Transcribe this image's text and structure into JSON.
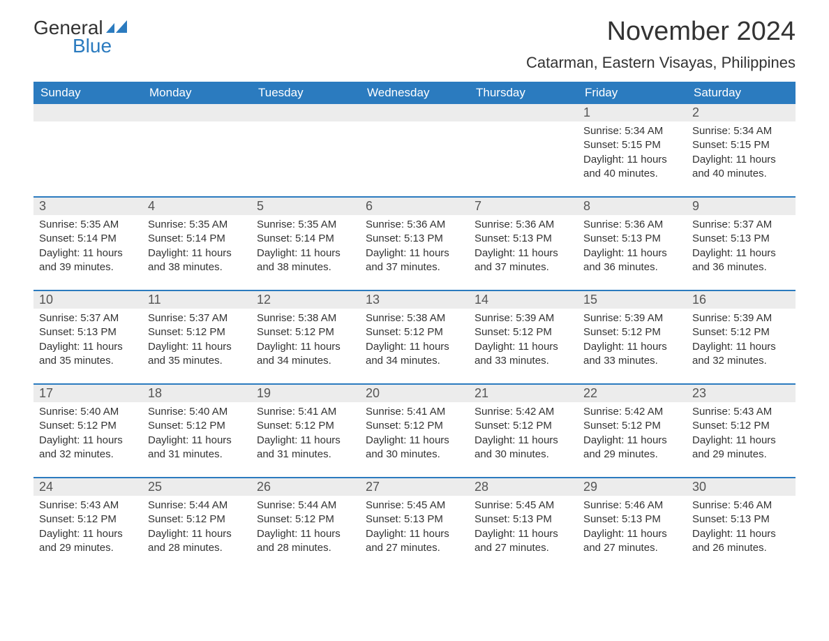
{
  "logo": {
    "text1": "General",
    "text2": "Blue",
    "icon_color": "#2b7bbf"
  },
  "title": "November 2024",
  "location": "Catarman, Eastern Visayas, Philippines",
  "weekday_header_bg": "#2b7bbf",
  "weekday_header_fg": "#ffffff",
  "daynum_bg": "#ececec",
  "accent_color": "#2b7bbf",
  "text_color": "#333333",
  "weekdays": [
    "Sunday",
    "Monday",
    "Tuesday",
    "Wednesday",
    "Thursday",
    "Friday",
    "Saturday"
  ],
  "weeks": [
    [
      null,
      null,
      null,
      null,
      null,
      {
        "n": "1",
        "sunrise": "5:34 AM",
        "sunset": "5:15 PM",
        "daylight": "11 hours and 40 minutes."
      },
      {
        "n": "2",
        "sunrise": "5:34 AM",
        "sunset": "5:15 PM",
        "daylight": "11 hours and 40 minutes."
      }
    ],
    [
      {
        "n": "3",
        "sunrise": "5:35 AM",
        "sunset": "5:14 PM",
        "daylight": "11 hours and 39 minutes."
      },
      {
        "n": "4",
        "sunrise": "5:35 AM",
        "sunset": "5:14 PM",
        "daylight": "11 hours and 38 minutes."
      },
      {
        "n": "5",
        "sunrise": "5:35 AM",
        "sunset": "5:14 PM",
        "daylight": "11 hours and 38 minutes."
      },
      {
        "n": "6",
        "sunrise": "5:36 AM",
        "sunset": "5:13 PM",
        "daylight": "11 hours and 37 minutes."
      },
      {
        "n": "7",
        "sunrise": "5:36 AM",
        "sunset": "5:13 PM",
        "daylight": "11 hours and 37 minutes."
      },
      {
        "n": "8",
        "sunrise": "5:36 AM",
        "sunset": "5:13 PM",
        "daylight": "11 hours and 36 minutes."
      },
      {
        "n": "9",
        "sunrise": "5:37 AM",
        "sunset": "5:13 PM",
        "daylight": "11 hours and 36 minutes."
      }
    ],
    [
      {
        "n": "10",
        "sunrise": "5:37 AM",
        "sunset": "5:13 PM",
        "daylight": "11 hours and 35 minutes."
      },
      {
        "n": "11",
        "sunrise": "5:37 AM",
        "sunset": "5:12 PM",
        "daylight": "11 hours and 35 minutes."
      },
      {
        "n": "12",
        "sunrise": "5:38 AM",
        "sunset": "5:12 PM",
        "daylight": "11 hours and 34 minutes."
      },
      {
        "n": "13",
        "sunrise": "5:38 AM",
        "sunset": "5:12 PM",
        "daylight": "11 hours and 34 minutes."
      },
      {
        "n": "14",
        "sunrise": "5:39 AM",
        "sunset": "5:12 PM",
        "daylight": "11 hours and 33 minutes."
      },
      {
        "n": "15",
        "sunrise": "5:39 AM",
        "sunset": "5:12 PM",
        "daylight": "11 hours and 33 minutes."
      },
      {
        "n": "16",
        "sunrise": "5:39 AM",
        "sunset": "5:12 PM",
        "daylight": "11 hours and 32 minutes."
      }
    ],
    [
      {
        "n": "17",
        "sunrise": "5:40 AM",
        "sunset": "5:12 PM",
        "daylight": "11 hours and 32 minutes."
      },
      {
        "n": "18",
        "sunrise": "5:40 AM",
        "sunset": "5:12 PM",
        "daylight": "11 hours and 31 minutes."
      },
      {
        "n": "19",
        "sunrise": "5:41 AM",
        "sunset": "5:12 PM",
        "daylight": "11 hours and 31 minutes."
      },
      {
        "n": "20",
        "sunrise": "5:41 AM",
        "sunset": "5:12 PM",
        "daylight": "11 hours and 30 minutes."
      },
      {
        "n": "21",
        "sunrise": "5:42 AM",
        "sunset": "5:12 PM",
        "daylight": "11 hours and 30 minutes."
      },
      {
        "n": "22",
        "sunrise": "5:42 AM",
        "sunset": "5:12 PM",
        "daylight": "11 hours and 29 minutes."
      },
      {
        "n": "23",
        "sunrise": "5:43 AM",
        "sunset": "5:12 PM",
        "daylight": "11 hours and 29 minutes."
      }
    ],
    [
      {
        "n": "24",
        "sunrise": "5:43 AM",
        "sunset": "5:12 PM",
        "daylight": "11 hours and 29 minutes."
      },
      {
        "n": "25",
        "sunrise": "5:44 AM",
        "sunset": "5:12 PM",
        "daylight": "11 hours and 28 minutes."
      },
      {
        "n": "26",
        "sunrise": "5:44 AM",
        "sunset": "5:12 PM",
        "daylight": "11 hours and 28 minutes."
      },
      {
        "n": "27",
        "sunrise": "5:45 AM",
        "sunset": "5:13 PM",
        "daylight": "11 hours and 27 minutes."
      },
      {
        "n": "28",
        "sunrise": "5:45 AM",
        "sunset": "5:13 PM",
        "daylight": "11 hours and 27 minutes."
      },
      {
        "n": "29",
        "sunrise": "5:46 AM",
        "sunset": "5:13 PM",
        "daylight": "11 hours and 27 minutes."
      },
      {
        "n": "30",
        "sunrise": "5:46 AM",
        "sunset": "5:13 PM",
        "daylight": "11 hours and 26 minutes."
      }
    ]
  ],
  "labels": {
    "sunrise": "Sunrise:",
    "sunset": "Sunset:",
    "daylight": "Daylight:"
  }
}
